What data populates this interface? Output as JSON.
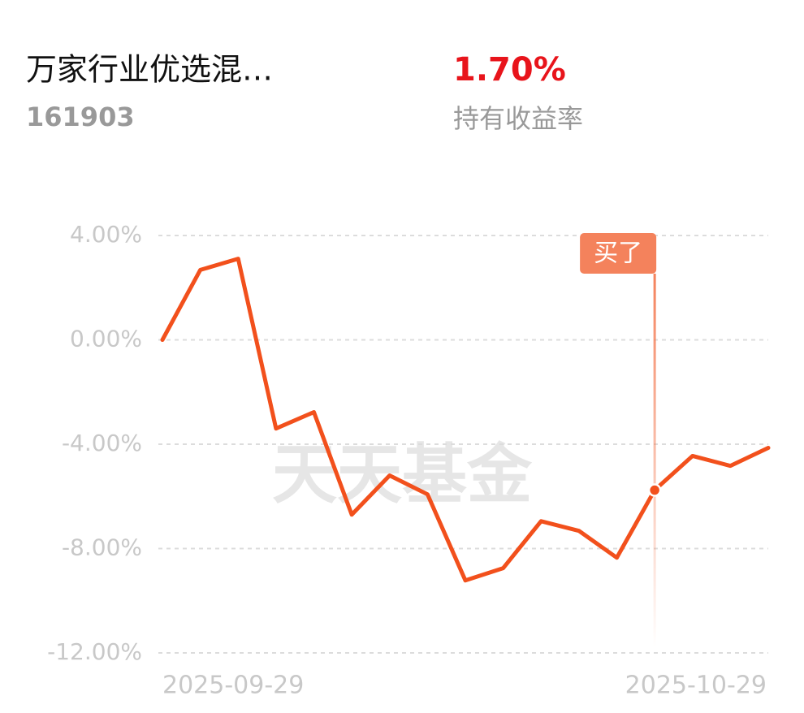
{
  "header": {
    "title": "万家行业优选混…",
    "code": "161903",
    "return_value": "1.70%",
    "return_label": "持有收益率"
  },
  "watermark": "天天基金",
  "chart_data": {
    "type": "line",
    "categories": [
      "2025-09-29",
      null,
      null,
      null,
      null,
      null,
      null,
      null,
      null,
      null,
      null,
      null,
      null,
      null,
      null,
      null,
      "2025-10-29"
    ],
    "values": [
      0,
      2.68,
      3.11,
      -3.4,
      -2.77,
      -6.7,
      -5.2,
      -5.92,
      -9.22,
      -8.75,
      -6.95,
      -7.32,
      -8.35,
      -5.76,
      -4.45,
      -4.83,
      -4.14
    ],
    "color": "#f2501c",
    "ylim": [
      -12,
      4
    ],
    "yticks": [
      {
        "value": 4,
        "label": "4.00%"
      },
      {
        "value": 0,
        "label": "0.00%"
      },
      {
        "value": -4,
        "label": "-4.00%"
      },
      {
        "value": -8,
        "label": "-8.00%"
      },
      {
        "value": -12,
        "label": "-12.00%"
      }
    ],
    "grid": true,
    "annotations": [
      {
        "text": "买了",
        "index": 13
      }
    ]
  }
}
